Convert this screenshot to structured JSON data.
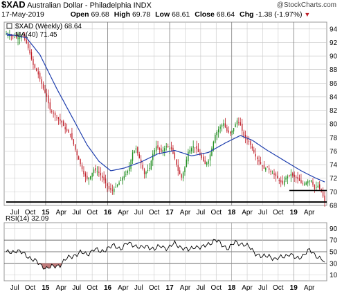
{
  "header": {
    "symbol": "$XAD",
    "name": "Australian Dollar - Philadelphia INDX",
    "watermark": "@StockCharts.com",
    "date": "17-May-2019",
    "open_label": "Open",
    "open_value": "69.68",
    "high_label": "High",
    "high_value": "69.78",
    "low_label": "Low",
    "low_value": "68.61",
    "close_label": "Close",
    "close_value": "68.64",
    "chg_label": "Chg",
    "chg_value": "-1.38 (-1.97%)",
    "chg_arrow": "▼"
  },
  "colors": {
    "up": "#1a8c1a",
    "down": "#c0202a",
    "ma": "#1f3fae",
    "rsi": "#000000",
    "rsi_fill": "#c07a7a",
    "grid": "#c8c8c8"
  },
  "chart_data": [
    {
      "type": "candlestick",
      "title": "",
      "legend": [
        {
          "label": "$XAD (Weekly) 68.64"
        },
        {
          "label": "MA(40) 71.45"
        }
      ],
      "ylim": [
        68,
        95
      ],
      "ytick_labels": [
        "68",
        "70",
        "72",
        "74",
        "76",
        "78",
        "80",
        "82",
        "84",
        "86",
        "88",
        "90",
        "92",
        "94"
      ],
      "xtick_labels": [
        "Jul",
        "Oct",
        "15",
        "Apr",
        "Jul",
        "Oct",
        "16",
        "Apr",
        "Jul",
        "Oct",
        "17",
        "Apr",
        "Jul",
        "Oct",
        "18",
        "Apr",
        "Jul",
        "Oct",
        "19",
        "Apr"
      ],
      "grid": true,
      "close_path": [
        [
          0,
          93.2
        ],
        [
          3,
          93.0
        ],
        [
          6,
          92.7
        ],
        [
          10,
          92.9
        ],
        [
          12,
          91.9
        ],
        [
          14,
          90.4
        ],
        [
          16,
          88.7
        ],
        [
          19,
          87.3
        ],
        [
          22,
          85.2
        ],
        [
          24,
          84.0
        ],
        [
          26,
          82.1
        ],
        [
          30,
          81.0
        ],
        [
          33,
          80.2
        ],
        [
          35,
          79.2
        ],
        [
          38,
          78.5
        ],
        [
          40,
          77.0
        ],
        [
          42,
          75.4
        ],
        [
          44,
          74.1
        ],
        [
          46,
          72.6
        ],
        [
          48,
          71.9
        ],
        [
          50,
          72.3
        ],
        [
          52,
          73.3
        ],
        [
          55,
          72.8
        ],
        [
          58,
          71.7
        ],
        [
          61,
          70.4
        ],
        [
          63,
          70.2
        ],
        [
          66,
          71.0
        ],
        [
          69,
          72.1
        ],
        [
          71,
          72.6
        ],
        [
          73,
          73.6
        ],
        [
          75,
          75.8
        ],
        [
          77,
          76.4
        ],
        [
          80,
          74.2
        ],
        [
          82,
          72.6
        ],
        [
          85,
          73.5
        ],
        [
          87,
          75.6
        ],
        [
          89,
          76.7
        ],
        [
          92,
          75.9
        ],
        [
          95,
          76.7
        ],
        [
          98,
          76.3
        ],
        [
          100,
          74.9
        ],
        [
          102,
          73.1
        ],
        [
          104,
          72.1
        ],
        [
          106,
          73.6
        ],
        [
          108,
          75.9
        ],
        [
          111,
          76.7
        ],
        [
          113,
          76.3
        ],
        [
          115,
          75.4
        ],
        [
          118,
          74.1
        ],
        [
          120,
          74.6
        ],
        [
          122,
          76.4
        ],
        [
          124,
          78.4
        ],
        [
          127,
          79.6
        ],
        [
          129,
          80.1
        ],
        [
          131,
          78.9
        ],
        [
          133,
          78.6
        ],
        [
          135,
          79.4
        ],
        [
          137,
          80.5
        ],
        [
          139,
          79.8
        ],
        [
          141,
          78.2
        ],
        [
          144,
          77.4
        ],
        [
          146,
          76.4
        ],
        [
          148,
          75.2
        ],
        [
          151,
          74.1
        ],
        [
          153,
          73.4
        ],
        [
          155,
          73.6
        ],
        [
          157,
          72.9
        ],
        [
          160,
          72.3
        ],
        [
          162,
          71.6
        ],
        [
          164,
          71.2
        ],
        [
          166,
          72.1
        ],
        [
          169,
          72.6
        ],
        [
          171,
          72.2
        ],
        [
          173,
          71.9
        ],
        [
          175,
          71.3
        ],
        [
          177,
          71.2
        ],
        [
          179,
          71.6
        ],
        [
          181,
          71.7
        ],
        [
          183,
          70.4
        ],
        [
          185,
          70.9
        ],
        [
          187,
          70.0
        ],
        [
          189,
          68.6
        ]
      ],
      "ma_path": [
        [
          0,
          93.3
        ],
        [
          12,
          92.7
        ],
        [
          20,
          90.2
        ],
        [
          30,
          85.2
        ],
        [
          40,
          80.6
        ],
        [
          48,
          76.9
        ],
        [
          55,
          74.5
        ],
        [
          62,
          73.1
        ],
        [
          70,
          73.5
        ],
        [
          80,
          74.4
        ],
        [
          90,
          75.6
        ],
        [
          100,
          76.1
        ],
        [
          110,
          75.3
        ],
        [
          120,
          75.8
        ],
        [
          130,
          77.2
        ],
        [
          139,
          78.3
        ],
        [
          146,
          77.6
        ],
        [
          155,
          76.1
        ],
        [
          165,
          74.6
        ],
        [
          175,
          73.1
        ],
        [
          183,
          72.1
        ],
        [
          189,
          71.45
        ]
      ],
      "support_lines": [
        {
          "value": 70.2,
          "from_week": 168,
          "to_week": 189
        },
        {
          "value": 68.5,
          "from_week": 0,
          "to_week": 189
        }
      ]
    },
    {
      "type": "line",
      "title": "",
      "legend": [
        {
          "label": "RSI(14) 32.09"
        }
      ],
      "ylim": [
        0,
        100
      ],
      "ytick_labels": [
        "10",
        "30",
        "50",
        "70",
        "90"
      ],
      "xtick_labels": [
        "Jul",
        "Oct",
        "15",
        "Apr",
        "Jul",
        "Oct",
        "16",
        "Apr",
        "Jul",
        "Oct",
        "17",
        "Apr",
        "Jul",
        "Oct",
        "18",
        "Apr",
        "Jul",
        "Oct",
        "19",
        "Apr"
      ],
      "reference_lines": [
        70,
        50,
        30
      ],
      "path": [
        [
          0,
          48
        ],
        [
          6,
          52
        ],
        [
          12,
          44
        ],
        [
          16,
          36
        ],
        [
          20,
          28
        ],
        [
          24,
          22
        ],
        [
          28,
          24
        ],
        [
          32,
          28
        ],
        [
          36,
          38
        ],
        [
          40,
          44
        ],
        [
          44,
          48
        ],
        [
          48,
          46
        ],
        [
          52,
          54
        ],
        [
          56,
          50
        ],
        [
          60,
          56
        ],
        [
          64,
          60
        ],
        [
          68,
          56
        ],
        [
          72,
          64
        ],
        [
          76,
          62
        ],
        [
          80,
          56
        ],
        [
          84,
          60
        ],
        [
          88,
          54
        ],
        [
          92,
          60
        ],
        [
          96,
          56
        ],
        [
          100,
          64
        ],
        [
          104,
          58
        ],
        [
          108,
          52
        ],
        [
          112,
          60
        ],
        [
          116,
          56
        ],
        [
          120,
          64
        ],
        [
          124,
          70
        ],
        [
          128,
          62
        ],
        [
          132,
          56
        ],
        [
          136,
          66
        ],
        [
          140,
          64
        ],
        [
          144,
          58
        ],
        [
          148,
          48
        ],
        [
          152,
          40
        ],
        [
          156,
          44
        ],
        [
          160,
          36
        ],
        [
          164,
          42
        ],
        [
          168,
          46
        ],
        [
          172,
          38
        ],
        [
          176,
          44
        ],
        [
          180,
          52
        ],
        [
          184,
          44
        ],
        [
          189,
          32.09
        ]
      ]
    }
  ]
}
